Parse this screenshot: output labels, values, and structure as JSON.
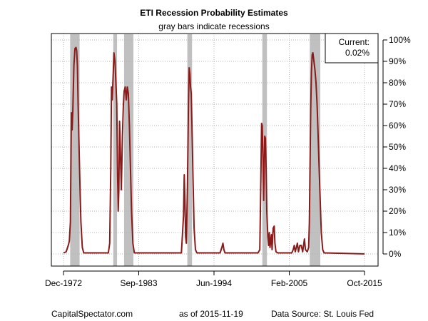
{
  "chart_data": {
    "type": "line",
    "title": "ETI Recession Probability Estimates",
    "subtitle": "gray bars indicate recessions",
    "xlabel": "",
    "ylabel": "",
    "x_ticks": [
      "Dec-1972",
      "Sep-1983",
      "Jun-1994",
      "Feb-2005",
      "Oct-2015"
    ],
    "y_ticks": [
      "0%",
      "10%",
      "20%",
      "30%",
      "40%",
      "50%",
      "60%",
      "70%",
      "80%",
      "90%",
      "100%"
    ],
    "ylim": [
      0,
      100
    ],
    "xlim": [
      1972.92,
      2015.75
    ],
    "y_axis_side": "right",
    "grid": true,
    "line_color": "#8b1a1a",
    "recession_color": "#c0c0c0",
    "current_box": {
      "label": "Current:",
      "value": "0.02%"
    },
    "recessions": [
      [
        1973.87,
        1975.21
      ],
      [
        1980.0,
        1980.54
      ],
      [
        1981.54,
        1982.87
      ],
      [
        1990.54,
        1991.21
      ],
      [
        2001.21,
        2001.87
      ],
      [
        2007.96,
        2009.46
      ]
    ],
    "series": [
      {
        "values": [
          [
            1972.92,
            0.5
          ],
          [
            1973.3,
            1.0
          ],
          [
            1973.6,
            4.0
          ],
          [
            1973.75,
            6.0
          ],
          [
            1973.9,
            15.0
          ],
          [
            1974.0,
            50.0
          ],
          [
            1974.05,
            66.0
          ],
          [
            1974.15,
            58.0
          ],
          [
            1974.25,
            67.0
          ],
          [
            1974.4,
            88.0
          ],
          [
            1974.55,
            96.0
          ],
          [
            1974.7,
            96.5
          ],
          [
            1974.8,
            95.0
          ],
          [
            1974.9,
            88.0
          ],
          [
            1975.0,
            70.0
          ],
          [
            1975.2,
            40.0
          ],
          [
            1975.4,
            15.0
          ],
          [
            1975.6,
            3.0
          ],
          [
            1975.8,
            0.5
          ],
          [
            1979.3,
            0.5
          ],
          [
            1979.5,
            5.0
          ],
          [
            1979.65,
            40.0
          ],
          [
            1979.75,
            78.0
          ],
          [
            1979.85,
            72.0
          ],
          [
            1980.0,
            85.0
          ],
          [
            1980.1,
            94.0
          ],
          [
            1980.25,
            90.0
          ],
          [
            1980.35,
            82.0
          ],
          [
            1980.5,
            70.0
          ],
          [
            1980.6,
            40.0
          ],
          [
            1980.7,
            20.0
          ],
          [
            1980.8,
            30.0
          ],
          [
            1980.9,
            62.0
          ],
          [
            1981.0,
            50.0
          ],
          [
            1981.15,
            30.0
          ],
          [
            1981.3,
            55.0
          ],
          [
            1981.45,
            70.0
          ],
          [
            1981.55,
            76.0
          ],
          [
            1981.7,
            78.0
          ],
          [
            1981.85,
            72.0
          ],
          [
            1982.0,
            78.0
          ],
          [
            1982.15,
            75.0
          ],
          [
            1982.3,
            60.0
          ],
          [
            1982.45,
            40.0
          ],
          [
            1982.6,
            20.0
          ],
          [
            1982.8,
            5.0
          ],
          [
            1983.0,
            0.5
          ],
          [
            1989.7,
            0.5
          ],
          [
            1990.0,
            18.0
          ],
          [
            1990.1,
            37.0
          ],
          [
            1990.2,
            25.0
          ],
          [
            1990.3,
            8.0
          ],
          [
            1990.4,
            5.0
          ],
          [
            1990.55,
            30.0
          ],
          [
            1990.7,
            70.0
          ],
          [
            1990.8,
            87.0
          ],
          [
            1990.9,
            84.0
          ],
          [
            1991.0,
            78.0
          ],
          [
            1991.1,
            75.0
          ],
          [
            1991.2,
            60.0
          ],
          [
            1991.35,
            35.0
          ],
          [
            1991.5,
            12.0
          ],
          [
            1991.7,
            2.0
          ],
          [
            1991.9,
            0.5
          ],
          [
            1995.2,
            0.5
          ],
          [
            1995.45,
            3.0
          ],
          [
            1995.6,
            5.0
          ],
          [
            1995.75,
            2.0
          ],
          [
            1995.9,
            0.5
          ],
          [
            2000.6,
            0.5
          ],
          [
            2000.85,
            2.0
          ],
          [
            2001.0,
            35.0
          ],
          [
            2001.1,
            61.0
          ],
          [
            2001.2,
            60.0
          ],
          [
            2001.3,
            45.0
          ],
          [
            2001.4,
            25.0
          ],
          [
            2001.55,
            55.0
          ],
          [
            2001.65,
            54.0
          ],
          [
            2001.75,
            40.0
          ],
          [
            2001.85,
            20.0
          ],
          [
            2002.0,
            8.0
          ],
          [
            2002.1,
            4.0
          ],
          [
            2002.2,
            10.0
          ],
          [
            2002.3,
            3.0
          ],
          [
            2002.5,
            9.0
          ],
          [
            2002.6,
            2.0
          ],
          [
            2002.75,
            12.0
          ],
          [
            2002.9,
            13.0
          ],
          [
            2003.0,
            5.0
          ],
          [
            2003.15,
            1.0
          ],
          [
            2003.4,
            0.5
          ],
          [
            2005.4,
            0.5
          ],
          [
            2005.6,
            2.0
          ],
          [
            2005.75,
            4.0
          ],
          [
            2005.9,
            1.0
          ],
          [
            2006.2,
            5.0
          ],
          [
            2006.35,
            1.0
          ],
          [
            2006.55,
            4.0
          ],
          [
            2006.75,
            4.0
          ],
          [
            2006.95,
            1.0
          ],
          [
            2007.2,
            7.0
          ],
          [
            2007.35,
            2.0
          ],
          [
            2007.6,
            1.0
          ],
          [
            2007.8,
            3.0
          ],
          [
            2007.9,
            15.0
          ],
          [
            2008.0,
            40.0
          ],
          [
            2008.1,
            68.0
          ],
          [
            2008.2,
            85.0
          ],
          [
            2008.3,
            93.0
          ],
          [
            2008.4,
            94.0
          ],
          [
            2008.55,
            90.0
          ],
          [
            2008.7,
            86.0
          ],
          [
            2008.85,
            80.0
          ],
          [
            2009.0,
            70.0
          ],
          [
            2009.15,
            55.0
          ],
          [
            2009.3,
            40.0
          ],
          [
            2009.45,
            25.0
          ],
          [
            2009.6,
            10.0
          ],
          [
            2009.8,
            2.0
          ],
          [
            2010.0,
            0.5
          ],
          [
            2015.75,
            0.02
          ]
        ]
      }
    ]
  },
  "footer": {
    "source_site": "CapitalSpectator.com",
    "as_of": "as of 2015-11-19",
    "data_source": "Data Source: St. Louis Fed"
  }
}
